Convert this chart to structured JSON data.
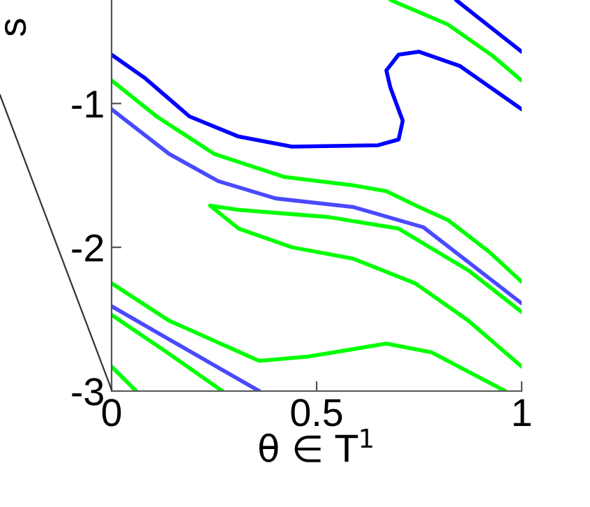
{
  "chart_data": {
    "type": "line",
    "xlabel": "θ ∈ T$^{1}$",
    "ylabel": "s",
    "xlim": [
      0,
      1
    ],
    "ylim": [
      -3,
      -0.28
    ],
    "xticks": [
      0,
      0.5,
      1
    ],
    "yticks": [
      -3,
      -2,
      -1
    ],
    "grid": false,
    "legend": false,
    "marker": "none",
    "line_style": "solid",
    "series": [
      {
        "color": "#0000ff",
        "x": [
          0,
          0.08,
          0.19,
          0.31,
          0.44,
          0.65,
          0.7,
          0.71,
          0.68,
          0.67,
          0.7,
          0.75,
          0.85,
          1.0
        ],
        "values": [
          -0.66,
          -0.82,
          -1.09,
          -1.23,
          -1.3,
          -1.29,
          -1.25,
          -1.12,
          -0.89,
          -0.77,
          -0.66,
          -0.64,
          -0.74,
          -1.04
        ]
      },
      {
        "color": "#0000ff",
        "x": [
          0.84,
          0.92,
          1.0
        ],
        "values": [
          -0.28,
          -0.46,
          -0.64
        ]
      },
      {
        "color": "#00ff00",
        "x": [
          0.68,
          0.82,
          0.93,
          1.0
        ],
        "values": [
          -0.28,
          -0.45,
          -0.67,
          -0.84
        ]
      },
      {
        "color": "#00ff00",
        "x": [
          0,
          0.11,
          0.25,
          0.42,
          0.59,
          0.67,
          0.75,
          0.82,
          0.92,
          1.0
        ],
        "values": [
          -0.84,
          -1.09,
          -1.35,
          -1.51,
          -1.57,
          -1.61,
          -1.72,
          -1.81,
          -2.03,
          -2.24
        ]
      },
      {
        "color": "#4a4aff",
        "x": [
          0,
          0.14,
          0.26,
          0.4,
          0.59,
          0.76,
          1.0
        ],
        "values": [
          -1.04,
          -1.35,
          -1.54,
          -1.66,
          -1.72,
          -1.86,
          -2.39
        ]
      },
      {
        "color": "#00ff00",
        "x": [
          1.0,
          0.87,
          0.7,
          0.53,
          0.31,
          0.24,
          0.31,
          0.44,
          0.59,
          0.74,
          0.87,
          1.0
        ],
        "values": [
          -2.45,
          -2.16,
          -1.87,
          -1.79,
          -1.74,
          -1.71,
          -1.87,
          -2.0,
          -2.08,
          -2.25,
          -2.51,
          -2.83
        ]
      },
      {
        "color": "#00ff00",
        "x": [
          0,
          0.14,
          0.36,
          0.48,
          0.67,
          0.78,
          0.96
        ],
        "values": [
          -2.25,
          -2.51,
          -2.79,
          -2.76,
          -2.67,
          -2.73,
          -3.0
        ]
      },
      {
        "color": "#4a4aff",
        "x": [
          0,
          0.14,
          0.36
        ],
        "values": [
          -2.41,
          -2.64,
          -3.0
        ]
      },
      {
        "color": "#00ff00",
        "x": [
          0,
          0.14,
          0.27
        ],
        "values": [
          -2.47,
          -2.74,
          -3.0
        ]
      },
      {
        "color": "#00ff00",
        "x": [
          0,
          0.06
        ],
        "values": [
          -2.83,
          -3.0
        ]
      }
    ]
  }
}
